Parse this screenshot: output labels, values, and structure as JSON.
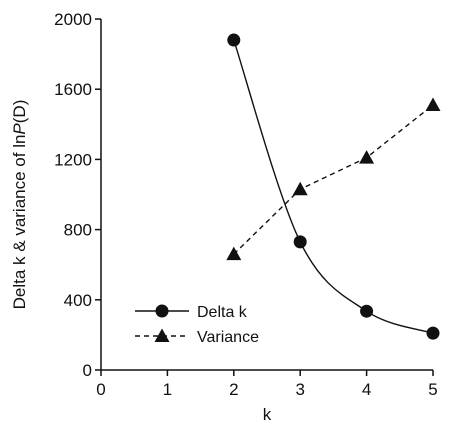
{
  "chart_data": {
    "type": "line",
    "title": "",
    "xlabel": "k",
    "ylabel": {
      "prefix": "Delta k & variance of ln",
      "italic": "P",
      "suffix": "(D)"
    },
    "xlim": [
      0,
      5
    ],
    "ylim": [
      0,
      2000
    ],
    "x_ticks": [
      "0",
      "1",
      "2",
      "3",
      "4",
      "5"
    ],
    "x_tick_values": [
      0,
      1,
      2,
      3,
      4,
      5
    ],
    "y_ticks": [
      "0",
      "400",
      "800",
      "1200",
      "1600",
      "2000"
    ],
    "y_tick_values": [
      0,
      400,
      800,
      1200,
      1600,
      2000
    ],
    "grid": false,
    "legend_position": "bottom-left",
    "series": [
      {
        "name": "Delta k",
        "marker": "circle",
        "line_style": "solid",
        "smooth": true,
        "color": "#111111",
        "x": [
          2,
          3,
          4,
          5
        ],
        "y": [
          1880,
          730,
          335,
          210
        ]
      },
      {
        "name": "Variance",
        "marker": "triangle",
        "line_style": "dashed",
        "smooth": false,
        "color": "#111111",
        "x": [
          2,
          3,
          4,
          5
        ],
        "y": [
          660,
          1030,
          1210,
          1510
        ]
      }
    ]
  }
}
